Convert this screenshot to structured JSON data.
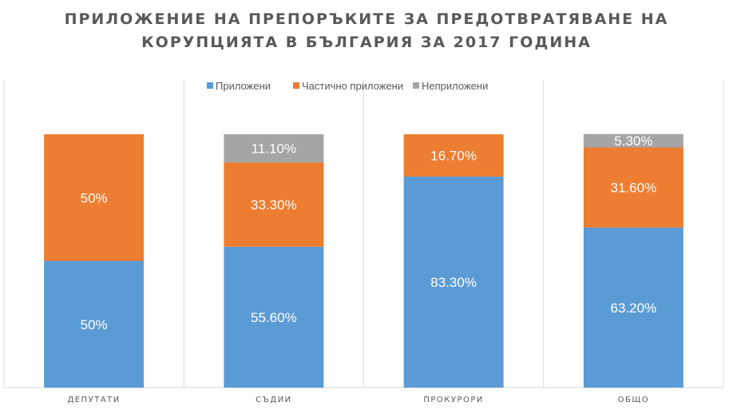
{
  "chart_data": {
    "type": "bar",
    "stacked": true,
    "title_lines": [
      "ПРИЛОЖЕНИЕ НА ПРЕПОРЪКИТЕ ЗА ПРЕДОТВРАТЯВАНЕ НА",
      "КОРУПЦИЯТА В БЪЛГАРИЯ ЗА 2017 ГОДИНА"
    ],
    "categories": [
      "ДЕПУТАТИ",
      "СЪДИИ",
      "ПРОКУРОРИ",
      "ОБЩО"
    ],
    "series": [
      {
        "name": "Приложени",
        "color": "#5B9BD5",
        "values": [
          50,
          55.6,
          83.3,
          63.2
        ],
        "labels": [
          "50%",
          "55.60%",
          "83.30%",
          "63.20%"
        ]
      },
      {
        "name": "Частично приложени",
        "color": "#ED7D31",
        "values": [
          50,
          33.3,
          16.7,
          31.6
        ],
        "labels": [
          "50%",
          "33.30%",
          "16.70%",
          "31.60%"
        ]
      },
      {
        "name": "Неприложени",
        "color": "#A5A5A5",
        "values": [
          0,
          11.1,
          0,
          5.3
        ],
        "labels": [
          "",
          "11.10%",
          "",
          "5.30%"
        ]
      }
    ],
    "ylim": [
      0,
      100
    ],
    "legend": "top",
    "grid": false
  }
}
